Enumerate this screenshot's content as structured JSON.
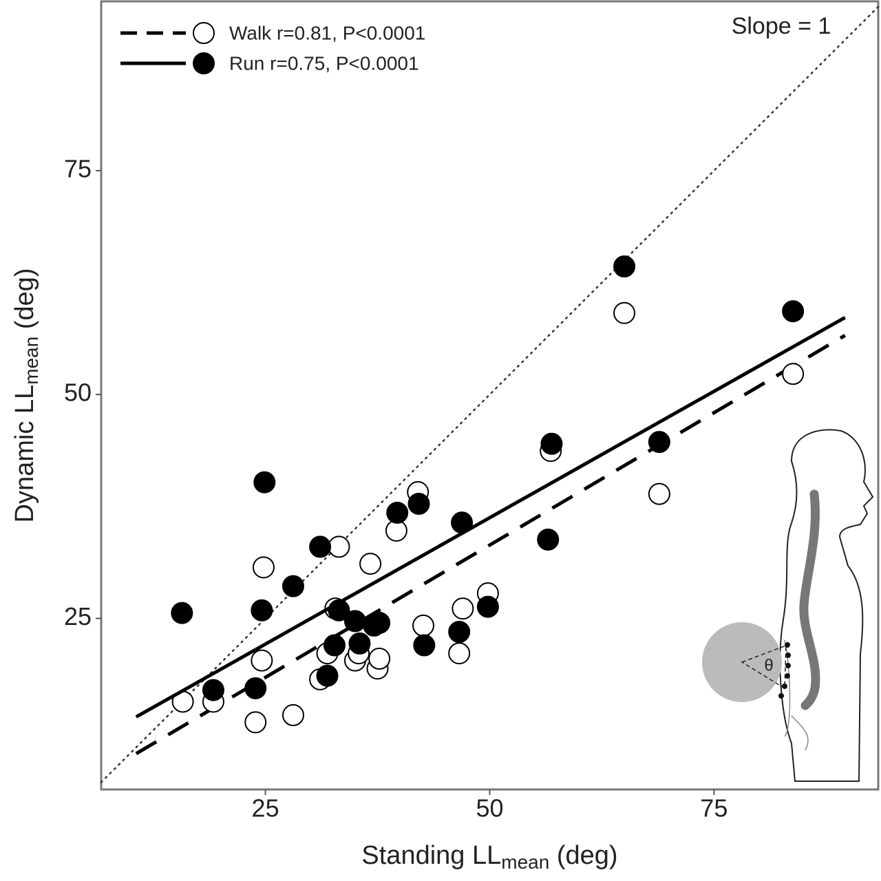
{
  "chart_data": {
    "type": "scatter",
    "xlabel": [
      "Standing LL",
      "mean",
      " (deg)"
    ],
    "ylabel": [
      "Dynamic LL",
      "mean",
      " (deg)"
    ],
    "xlim": [
      6.7,
      93.3
    ],
    "ylim": [
      5.9,
      93.9
    ],
    "xticks": [
      25,
      50,
      75
    ],
    "yticks": [
      25,
      50,
      75
    ],
    "reference_line": {
      "label": "Slope = 1",
      "slope": 1
    },
    "series": [
      {
        "name": "Walk r=0.81, P<0.0001",
        "color": "#000000",
        "marker_fill": "#ffffff",
        "line_style": "dashed",
        "x": [
          15.8,
          19.2,
          23.9,
          24.6,
          24.8,
          28.1,
          31.1,
          31.9,
          33.2,
          32.8,
          35.0,
          35.4,
          36.7,
          37.5,
          37.7,
          39.6,
          42.0,
          42.6,
          46.6,
          47.0,
          49.8,
          56.8,
          65.0,
          68.9,
          83.8
        ],
        "values": [
          15.7,
          15.7,
          13.4,
          20.3,
          30.7,
          14.2,
          18.2,
          21.1,
          33.0,
          26.1,
          20.3,
          21.1,
          31.1,
          19.4,
          20.5,
          34.8,
          39.1,
          24.2,
          21.1,
          26.1,
          27.8,
          43.7,
          59.1,
          38.9,
          52.3
        ],
        "fit": {
          "x": [
            10.6,
            89.6
          ],
          "y": [
            9.9,
            56.6
          ]
        }
      },
      {
        "name": "Run r=0.75, P<0.0001",
        "color": "#000000",
        "marker_fill": "#000000",
        "line_style": "solid",
        "x": [
          15.7,
          19.2,
          23.9,
          24.6,
          24.9,
          28.1,
          31.1,
          31.9,
          32.7,
          33.2,
          35.0,
          35.5,
          37.1,
          37.7,
          39.7,
          42.1,
          42.7,
          46.6,
          46.9,
          49.8,
          56.5,
          56.9,
          65.0,
          68.9,
          83.8
        ],
        "values": [
          25.6,
          17.0,
          17.2,
          25.9,
          40.2,
          28.6,
          33.0,
          18.6,
          22.0,
          25.9,
          24.7,
          22.2,
          24.2,
          24.5,
          36.8,
          37.8,
          22.0,
          23.5,
          35.7,
          26.3,
          33.8,
          44.5,
          64.3,
          44.7,
          59.3
        ],
        "fit": {
          "x": [
            10.6,
            89.6
          ],
          "y": [
            14.0,
            58.6
          ]
        }
      }
    ]
  }
}
